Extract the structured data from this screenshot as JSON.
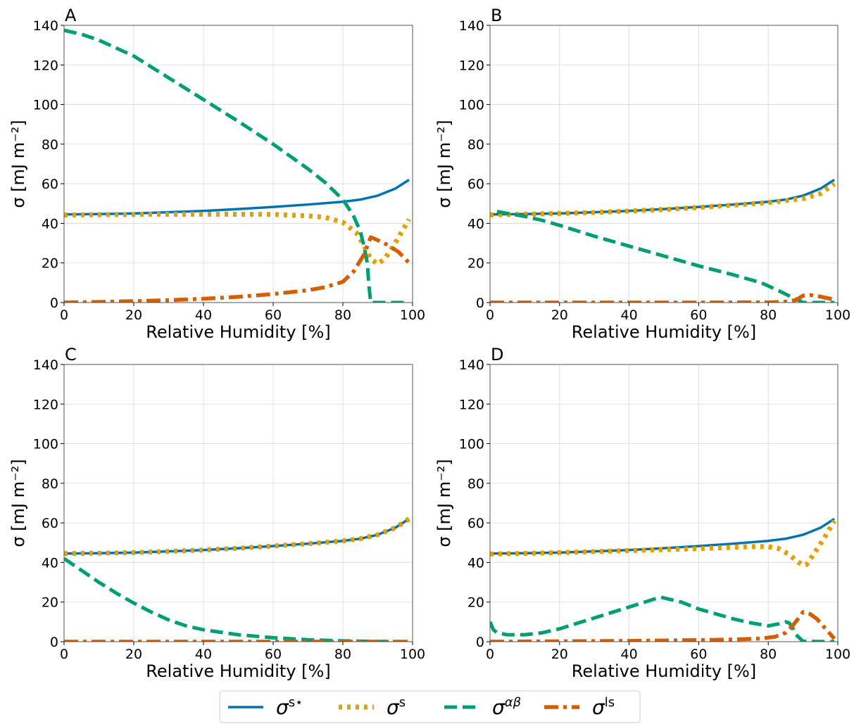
{
  "legend": {
    "entries": [
      {
        "key": "sstar",
        "base": "σ",
        "sup": "s⋆",
        "sup_italic": false,
        "color": "#0072B2",
        "dash": "solid"
      },
      {
        "key": "s",
        "base": "σ",
        "sup": "s",
        "sup_italic": false,
        "color": "#E69F00",
        "dash": "dotted"
      },
      {
        "key": "ab",
        "base": "σ",
        "sup": "αβ",
        "sup_italic": true,
        "color": "#009E73",
        "dash": "dashed"
      },
      {
        "key": "ls",
        "base": "σ",
        "sup": "ls",
        "sup_italic": false,
        "color": "#D55E00",
        "dash": "dashdot"
      }
    ]
  },
  "chart_data": [
    {
      "type": "line",
      "panel": "A",
      "xlabel": "Relative Humidity [%]",
      "ylabel": "σ [mJ m⁻²]",
      "xlim": [
        0,
        100
      ],
      "ylim": [
        0,
        140
      ],
      "xticks": [
        0,
        20,
        40,
        60,
        80,
        100
      ],
      "yticks": [
        0,
        20,
        40,
        60,
        80,
        100,
        120,
        140
      ],
      "grid": true,
      "series": [
        {
          "key": "sstar",
          "x": [
            0,
            10,
            20,
            30,
            40,
            50,
            60,
            70,
            80,
            85,
            90,
            95,
            99
          ],
          "y": [
            44.5,
            44.7,
            45.0,
            45.6,
            46.3,
            47.2,
            48.3,
            49.5,
            50.9,
            52.0,
            54.0,
            57.5,
            62.0
          ]
        },
        {
          "key": "s",
          "x": [
            0,
            10,
            20,
            30,
            40,
            50,
            60,
            70,
            75,
            80,
            84,
            86,
            88,
            90,
            92,
            95,
            99
          ],
          "y": [
            44.2,
            44.4,
            44.5,
            44.6,
            44.6,
            44.6,
            44.5,
            43.8,
            43.0,
            40.5,
            35.0,
            29.0,
            22.0,
            19.5,
            22.0,
            30.0,
            42.0
          ]
        },
        {
          "key": "ab",
          "x": [
            0,
            5,
            10,
            15,
            20,
            25,
            30,
            40,
            50,
            60,
            70,
            75,
            80,
            83,
            85,
            86,
            87,
            87.5,
            88,
            90,
            99
          ],
          "y": [
            137.5,
            135.5,
            132.5,
            128.5,
            124.5,
            119.0,
            113.5,
            102.5,
            91.5,
            80.0,
            67.5,
            60.5,
            52.0,
            44.0,
            36.0,
            29.0,
            20.0,
            8.0,
            0,
            0,
            0
          ]
        },
        {
          "key": "ls",
          "x": [
            0,
            10,
            20,
            30,
            40,
            50,
            60,
            70,
            75,
            80,
            83,
            86,
            88,
            90,
            93,
            96,
            99
          ],
          "y": [
            0.0,
            0.3,
            0.7,
            1.2,
            1.9,
            2.9,
            4.3,
            6.2,
            7.8,
            10.5,
            15.5,
            24.0,
            33.0,
            31.5,
            29.0,
            25.5,
            20.0
          ]
        }
      ]
    },
    {
      "type": "line",
      "panel": "B",
      "xlabel": "Relative Humidity [%]",
      "ylabel": "σ [mJ m⁻²]",
      "xlim": [
        0,
        100
      ],
      "ylim": [
        0,
        140
      ],
      "xticks": [
        0,
        20,
        40,
        60,
        80,
        100
      ],
      "yticks": [
        0,
        20,
        40,
        60,
        80,
        100,
        120,
        140
      ],
      "grid": true,
      "series": [
        {
          "key": "sstar",
          "x": [
            0,
            10,
            20,
            30,
            40,
            50,
            60,
            70,
            80,
            85,
            90,
            95,
            99
          ],
          "y": [
            44.5,
            44.7,
            45.0,
            45.6,
            46.3,
            47.2,
            48.3,
            49.5,
            50.9,
            52.0,
            54.0,
            57.5,
            62.0
          ]
        },
        {
          "key": "s",
          "x": [
            0,
            10,
            20,
            30,
            40,
            50,
            60,
            70,
            80,
            85,
            90,
            95,
            99
          ],
          "y": [
            44.3,
            44.6,
            45.0,
            45.5,
            46.2,
            47.0,
            48.0,
            49.2,
            50.5,
            51.5,
            52.5,
            55.0,
            60.0
          ]
        },
        {
          "key": "ab",
          "x": [
            2,
            5,
            10,
            15,
            20,
            30,
            40,
            50,
            60,
            70,
            78,
            83,
            87,
            89,
            90,
            99
          ],
          "y": [
            46.0,
            45.0,
            43.5,
            41.5,
            39.0,
            33.5,
            28.5,
            23.5,
            18.5,
            14.0,
            10.0,
            6.0,
            2.5,
            1.0,
            0,
            0
          ]
        },
        {
          "key": "ls",
          "x": [
            0,
            20,
            40,
            60,
            80,
            84,
            86,
            88,
            90,
            92,
            95,
            99
          ],
          "y": [
            0,
            0,
            0,
            0,
            0.1,
            0.3,
            0.6,
            1.3,
            3.5,
            3.8,
            3.0,
            1.5
          ]
        }
      ]
    },
    {
      "type": "line",
      "panel": "C",
      "xlabel": "Relative Humidity [%]",
      "ylabel": "σ [mJ m⁻²]",
      "xlim": [
        0,
        100
      ],
      "ylim": [
        0,
        140
      ],
      "xticks": [
        0,
        20,
        40,
        60,
        80,
        100
      ],
      "yticks": [
        0,
        20,
        40,
        60,
        80,
        100,
        120,
        140
      ],
      "grid": true,
      "series": [
        {
          "key": "sstar",
          "x": [
            0,
            10,
            20,
            30,
            40,
            50,
            60,
            70,
            80,
            85,
            90,
            95,
            99
          ],
          "y": [
            44.5,
            44.7,
            45.0,
            45.6,
            46.3,
            47.2,
            48.3,
            49.5,
            50.9,
            52.0,
            54.0,
            57.5,
            62.0
          ]
        },
        {
          "key": "s",
          "x": [
            0,
            10,
            20,
            30,
            40,
            50,
            60,
            70,
            80,
            85,
            90,
            95,
            99
          ],
          "y": [
            44.5,
            44.7,
            45.0,
            45.6,
            46.3,
            47.2,
            48.3,
            49.5,
            50.9,
            52.0,
            54.0,
            57.5,
            62.0
          ]
        },
        {
          "key": "ab",
          "x": [
            0,
            5,
            10,
            15,
            20,
            25,
            30,
            35,
            40,
            50,
            60,
            70,
            80,
            90,
            99
          ],
          "y": [
            42.0,
            36.0,
            30.0,
            24.5,
            19.5,
            15.0,
            11.0,
            8.0,
            6.0,
            3.5,
            2.0,
            1.0,
            0.4,
            0.1,
            0.0
          ]
        },
        {
          "key": "ls",
          "x": [
            0,
            20,
            40,
            60,
            80,
            99
          ],
          "y": [
            0,
            0,
            0,
            0,
            0,
            0
          ]
        }
      ]
    },
    {
      "type": "line",
      "panel": "D",
      "xlabel": "Relative Humidity [%]",
      "ylabel": "σ [mJ m⁻²]",
      "xlim": [
        0,
        100
      ],
      "ylim": [
        0,
        140
      ],
      "xticks": [
        0,
        20,
        40,
        60,
        80,
        100
      ],
      "yticks": [
        0,
        20,
        40,
        60,
        80,
        100,
        120,
        140
      ],
      "grid": true,
      "series": [
        {
          "key": "sstar",
          "x": [
            0,
            10,
            20,
            30,
            40,
            50,
            60,
            70,
            80,
            85,
            90,
            95,
            99
          ],
          "y": [
            44.5,
            44.7,
            45.0,
            45.6,
            46.3,
            47.2,
            48.3,
            49.5,
            50.9,
            52.0,
            54.0,
            57.5,
            62.0
          ]
        },
        {
          "key": "s",
          "x": [
            0,
            10,
            20,
            30,
            40,
            50,
            60,
            70,
            75,
            80,
            83,
            86,
            88,
            90,
            91,
            93,
            96,
            99
          ],
          "y": [
            44.3,
            44.6,
            45.0,
            45.5,
            46.0,
            46.5,
            47.0,
            47.7,
            48.0,
            48.0,
            47.0,
            44.0,
            41.0,
            38.5,
            39.0,
            44.0,
            52.0,
            61.0
          ]
        },
        {
          "key": "ab",
          "x": [
            0,
            1,
            2,
            5,
            10,
            15,
            20,
            30,
            40,
            49,
            55,
            60,
            70,
            75,
            80,
            83,
            85,
            86,
            87,
            88,
            90,
            99
          ],
          "y": [
            10.0,
            6.0,
            4.5,
            3.5,
            3.5,
            4.5,
            6.5,
            12.0,
            17.5,
            22.5,
            20.0,
            16.5,
            11.5,
            9.5,
            8.0,
            9.0,
            10.0,
            9.5,
            7.0,
            3.5,
            0.2,
            0
          ]
        },
        {
          "key": "ls",
          "x": [
            0,
            20,
            40,
            60,
            70,
            78,
            82,
            85,
            87,
            89,
            90,
            92,
            94,
            96,
            99
          ],
          "y": [
            0,
            0.2,
            0.4,
            0.8,
            1.1,
            1.6,
            2.5,
            4.5,
            8.0,
            12.5,
            15.0,
            14.0,
            11.5,
            7.5,
            1.5
          ]
        }
      ]
    }
  ]
}
